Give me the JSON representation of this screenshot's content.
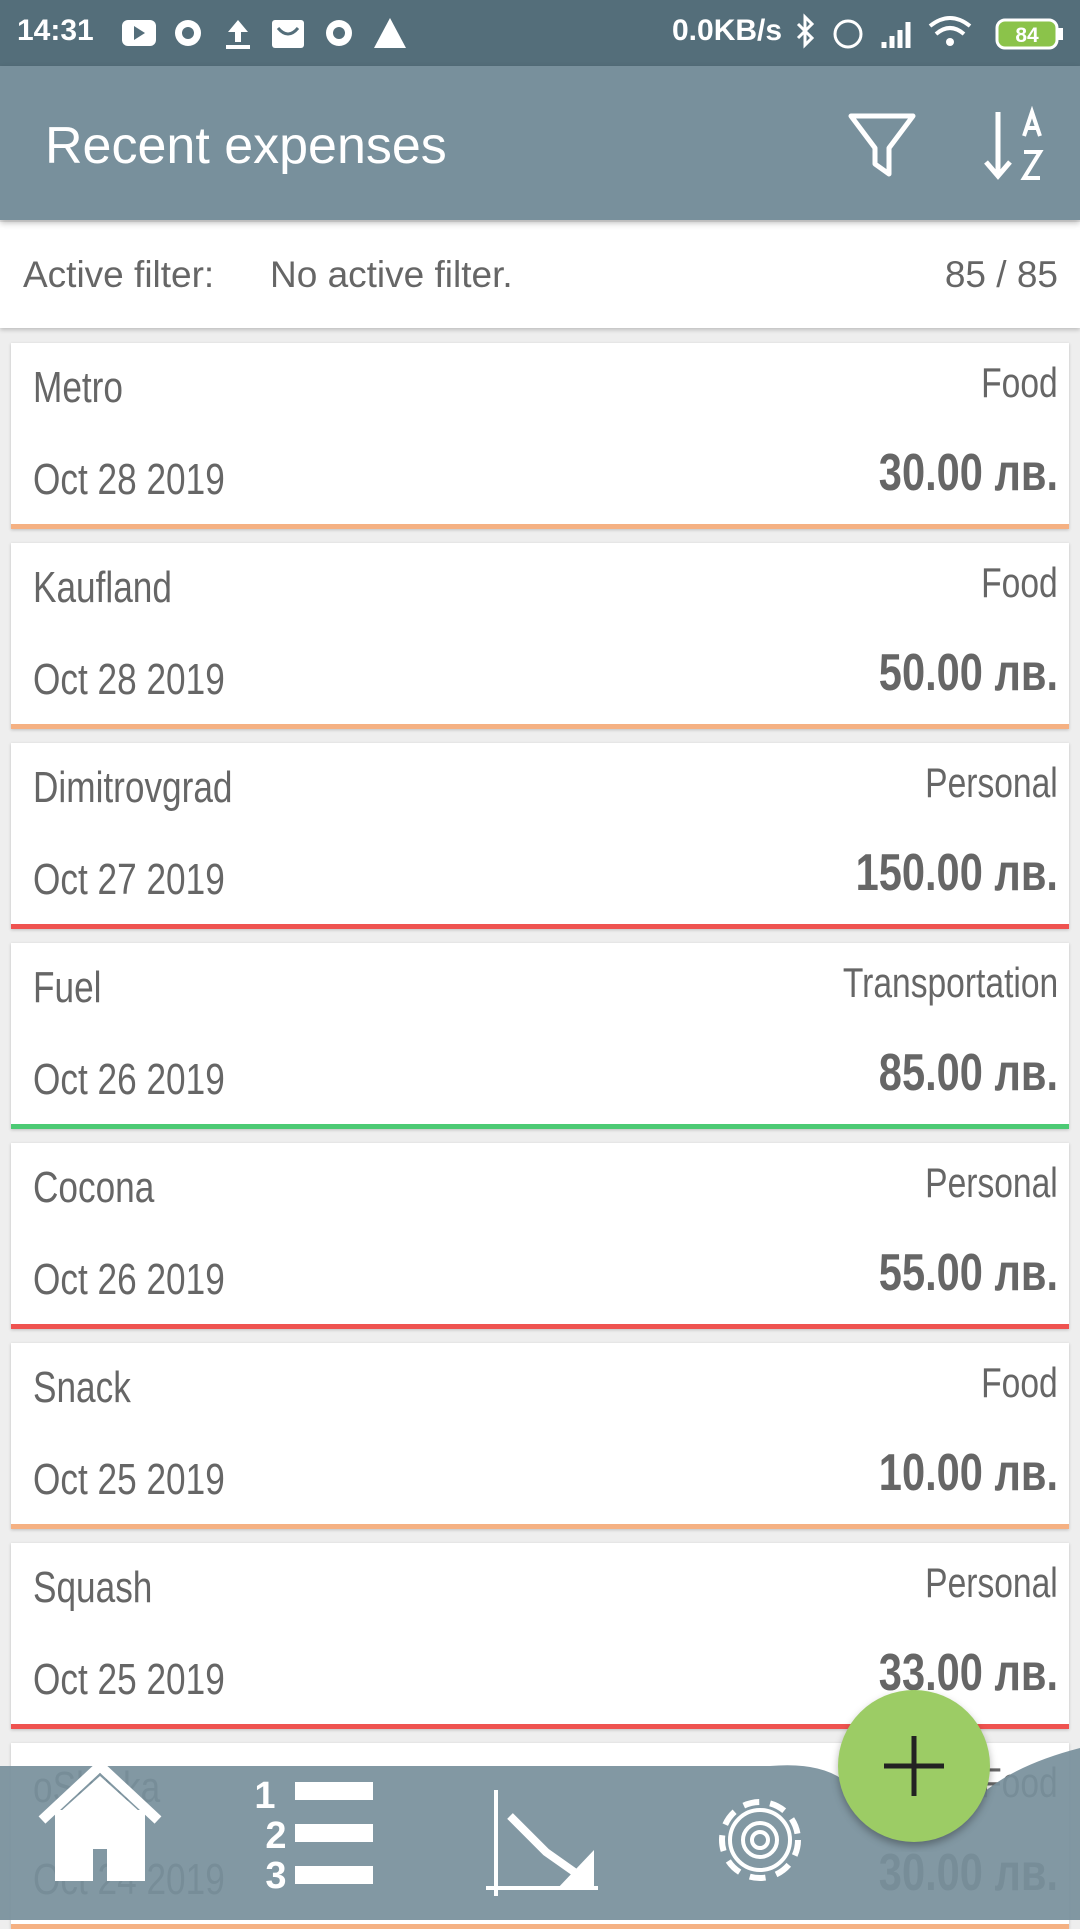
{
  "status_bar": {
    "time": "14:31",
    "speed": "0.0KB/s",
    "battery": "84"
  },
  "app_bar": {
    "title": "Recent expenses"
  },
  "filter": {
    "label": "Active filter:",
    "value": "No active filter.",
    "count": "85 / 85"
  },
  "expenses": [
    {
      "name": "Metro",
      "category": "Food",
      "date": "Oct 28 2019",
      "amount": "30.00 лв.",
      "color": "#f5b183"
    },
    {
      "name": "Kaufland",
      "category": "Food",
      "date": "Oct 28 2019",
      "amount": "50.00 лв.",
      "color": "#f5b183"
    },
    {
      "name": "Dimitrovgrad",
      "category": "Personal",
      "date": "Oct 27 2019",
      "amount": "150.00 лв.",
      "color": "#ef5350"
    },
    {
      "name": "Fuel",
      "category": "Transportation",
      "date": "Oct 26 2019",
      "amount": "85.00 лв.",
      "color": "#4cca74"
    },
    {
      "name": "Cocona",
      "category": "Personal",
      "date": "Oct 26 2019",
      "amount": "55.00 лв.",
      "color": "#ef5350"
    },
    {
      "name": "Snack",
      "category": "Food",
      "date": "Oct 25 2019",
      "amount": "10.00 лв.",
      "color": "#f5b183"
    },
    {
      "name": "Squash",
      "category": "Personal",
      "date": "Oct 25 2019",
      "amount": "33.00 лв.",
      "color": "#ef5350"
    },
    {
      "name": "oShinka",
      "category": "Food",
      "date": "Oct 24 2019",
      "amount": "30.00 лв.",
      "color": "#f5b183"
    }
  ]
}
